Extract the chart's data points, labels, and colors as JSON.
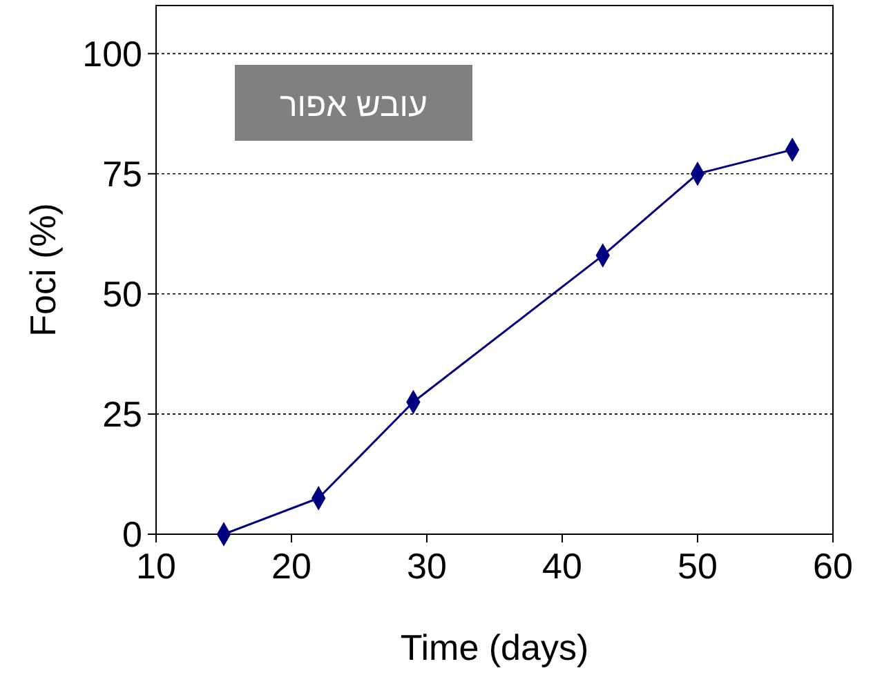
{
  "chart_data": {
    "type": "line",
    "title": "עובש אפור",
    "xlabel": "Time (days)",
    "ylabel": "Foci (%)",
    "x": [
      15,
      22,
      29,
      43,
      50,
      57
    ],
    "series": [
      {
        "color": "#000080",
        "values": [
          0,
          7.5,
          27.5,
          58,
          75,
          80
        ]
      }
    ],
    "xlim": [
      10,
      60
    ],
    "xticks": [
      10,
      20,
      30,
      40,
      50,
      60
    ],
    "ylim": [
      0,
      110
    ],
    "yticks": [
      0,
      25,
      50,
      75,
      100
    ],
    "grid": "y",
    "marker": "diamond",
    "line_style": "solid"
  }
}
